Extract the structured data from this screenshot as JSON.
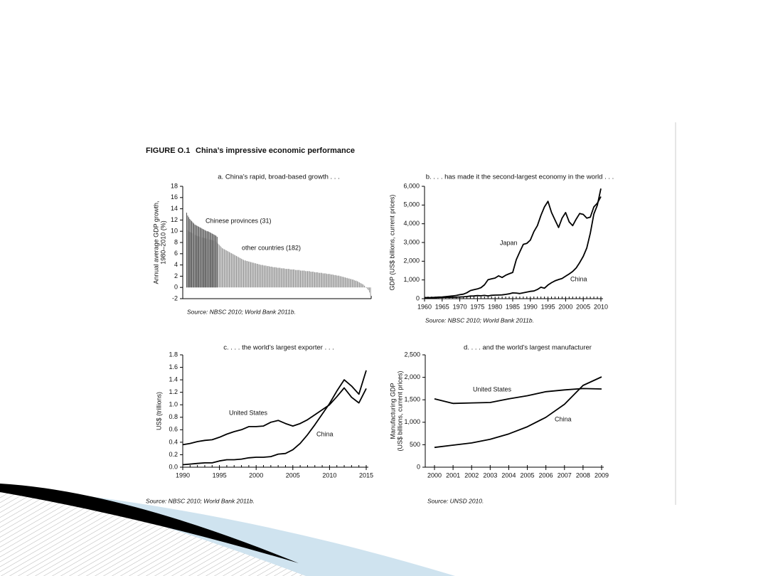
{
  "figure": {
    "label": "FIGURE O.1",
    "title": "China’s impressive economic performance"
  },
  "chart_data": [
    {
      "type": "bar",
      "title": "a. China’s rapid, broad-based growth . . .",
      "ylabel": [
        "Annual average GDP growth,",
        "1980–2010 (%)"
      ],
      "ylim": [
        -2,
        18
      ],
      "yticks": [
        -2,
        0,
        2,
        4,
        6,
        8,
        10,
        12,
        14,
        16,
        18
      ],
      "series": [
        {
          "name": "other countries (182)",
          "color": "#9a9a9a",
          "values": [
            10.5,
            10.2,
            10.0,
            9.9,
            9.8,
            9.7,
            9.6,
            9.5,
            9.4,
            9.3,
            9.2,
            9.1,
            9.1,
            9.0,
            9.0,
            8.9,
            8.9,
            8.8,
            8.8,
            8.7,
            8.7,
            8.6,
            8.6,
            8.5,
            8.5,
            8.4,
            8.4,
            8.3,
            8.3,
            8.2,
            8.0,
            7.8,
            7.6,
            7.4,
            7.2,
            7.0,
            6.9,
            6.8,
            6.7,
            6.6,
            6.5,
            6.4,
            6.3,
            6.2,
            6.1,
            6.0,
            5.9,
            5.8,
            5.7,
            5.6,
            5.5,
            5.4,
            5.3,
            5.2,
            5.1,
            5.0,
            4.9,
            4.8,
            4.8,
            4.7,
            4.7,
            4.6,
            4.6,
            4.5,
            4.5,
            4.4,
            4.4,
            4.3,
            4.3,
            4.2,
            4.2,
            4.1,
            4.1,
            4.0,
            4.0,
            4.0,
            3.9,
            3.9,
            3.9,
            3.8,
            3.8,
            3.8,
            3.7,
            3.7,
            3.7,
            3.6,
            3.6,
            3.6,
            3.6,
            3.5,
            3.5,
            3.5,
            3.5,
            3.4,
            3.4,
            3.4,
            3.4,
            3.3,
            3.3,
            3.3,
            3.3,
            3.3,
            3.2,
            3.2,
            3.2,
            3.2,
            3.2,
            3.1,
            3.1,
            3.1,
            3.1,
            3.1,
            3.0,
            3.0,
            3.0,
            3.0,
            3.0,
            2.9,
            2.9,
            2.9,
            2.9,
            2.9,
            2.8,
            2.8,
            2.8,
            2.8,
            2.7,
            2.7,
            2.7,
            2.7,
            2.6,
            2.6,
            2.6,
            2.6,
            2.5,
            2.5,
            2.5,
            2.5,
            2.4,
            2.4,
            2.4,
            2.4,
            2.3,
            2.3,
            2.3,
            2.2,
            2.2,
            2.2,
            2.1,
            2.1,
            2.1,
            2.0,
            2.0,
            1.9,
            1.9,
            1.8,
            1.8,
            1.7,
            1.7,
            1.6,
            1.6,
            1.5,
            1.5,
            1.4,
            1.4,
            1.3,
            1.2,
            1.2,
            1.1,
            1.0,
            0.9,
            0.8,
            0.7,
            0.6,
            0.5,
            0.3,
            0.1,
            -0.1,
            -0.3,
            -0.5,
            -0.9,
            -1.5
          ]
        },
        {
          "name": "Chinese provinces (31)",
          "color": "#555555",
          "values": [
            13.3,
            12.8,
            12.5,
            12.2,
            12.0,
            11.8,
            11.6,
            11.4,
            11.2,
            11.1,
            11.0,
            10.9,
            10.8,
            10.7,
            10.6,
            10.5,
            10.4,
            10.3,
            10.2,
            10.1,
            10.0,
            10.0,
            9.9,
            9.8,
            9.7,
            9.6,
            9.5,
            9.4,
            9.3,
            9.2,
            9.0
          ]
        }
      ],
      "source": "Source: NBSC 2010; World Bank 2011b."
    },
    {
      "type": "line",
      "title": "b. . . . has made it the second-largest economy in the world . . .",
      "ylabel": [
        "GDP (US$ billions, current prices)"
      ],
      "x": [
        1960,
        1961,
        1962,
        1963,
        1964,
        1965,
        1966,
        1967,
        1968,
        1969,
        1970,
        1971,
        1972,
        1973,
        1974,
        1975,
        1976,
        1977,
        1978,
        1979,
        1980,
        1981,
        1982,
        1983,
        1984,
        1985,
        1986,
        1987,
        1988,
        1989,
        1990,
        1991,
        1992,
        1993,
        1994,
        1995,
        1996,
        1997,
        1998,
        1999,
        2000,
        2001,
        2002,
        2003,
        2004,
        2005,
        2006,
        2007,
        2008,
        2009,
        2010
      ],
      "xlim": [
        1960,
        2010
      ],
      "xticks": [
        1960,
        1965,
        1970,
        1975,
        1980,
        1985,
        1990,
        1995,
        2000,
        2005,
        2010
      ],
      "ylim": [
        0,
        6000
      ],
      "yticks": [
        0,
        {
          "value": 1000,
          "label": "1,000"
        },
        {
          "value": 2000,
          "label": "2,000"
        },
        {
          "value": 3000,
          "label": "3,000"
        },
        {
          "value": 4000,
          "label": "4,000"
        },
        {
          "value": 5000,
          "label": "5,000"
        },
        {
          "value": 6000,
          "label": "6,000"
        }
      ],
      "series": [
        {
          "name": "Japan",
          "color": "#000000",
          "values": [
            44,
            54,
            61,
            70,
            82,
            91,
            106,
            124,
            147,
            172,
            213,
            241,
            317,
            433,
            477,
            522,
            587,
            740,
            1010,
            1060,
            1100,
            1220,
            1130,
            1250,
            1330,
            1400,
            2080,
            2500,
            2900,
            2950,
            3130,
            3580,
            3900,
            4450,
            4900,
            5200,
            4600,
            4200,
            3800,
            4300,
            4600,
            4100,
            3900,
            4250,
            4550,
            4500,
            4300,
            4350,
            4900,
            5100,
            5450
          ]
        },
        {
          "name": "China",
          "color": "#000000",
          "values": [
            60,
            50,
            47,
            51,
            60,
            70,
            77,
            73,
            71,
            79,
            92,
            100,
            114,
            139,
            144,
            163,
            154,
            175,
            149,
            178,
            191,
            195,
            203,
            228,
            257,
            309,
            300,
            273,
            312,
            348,
            390,
            409,
            488,
            613,
            559,
            728,
            856,
            953,
            1020,
            1080,
            1200,
            1320,
            1450,
            1640,
            1930,
            2260,
            2710,
            3490,
            4520,
            4990,
            5880
          ]
        }
      ],
      "source": "Source: NBSC 2010; World Bank 2011b."
    },
    {
      "type": "line",
      "title": "c. . . . the world’s largest exporter . . .",
      "ylabel": [
        "US$ (trillions)"
      ],
      "x": [
        1990,
        1991,
        1992,
        1993,
        1994,
        1995,
        1996,
        1997,
        1998,
        1999,
        2000,
        2001,
        2002,
        2003,
        2004,
        2005,
        2006,
        2007,
        2008,
        2009,
        2010,
        2011,
        2012,
        2013,
        2014,
        2015
      ],
      "xlim": [
        1990,
        2015
      ],
      "xticks": [
        1990,
        1995,
        2000,
        2005,
        2010,
        2015
      ],
      "ylim": [
        0,
        1.8
      ],
      "yticks": [
        {
          "value": 0,
          "label": "0.0"
        },
        0.2,
        0.4,
        0.6,
        0.8,
        {
          "value": 1,
          "label": "1.0"
        },
        1.2,
        1.4,
        1.6,
        1.8
      ],
      "series": [
        {
          "name": "United States",
          "color": "#000000",
          "values": [
            0.36,
            0.38,
            0.41,
            0.43,
            0.44,
            0.48,
            0.53,
            0.57,
            0.6,
            0.65,
            0.65,
            0.66,
            0.72,
            0.75,
            0.7,
            0.66,
            0.7,
            0.76,
            0.84,
            0.92,
            1.0,
            1.13,
            1.27,
            1.12,
            1.03,
            1.26
          ]
        },
        {
          "name": "China",
          "color": "#000000",
          "values": [
            0.04,
            0.05,
            0.06,
            0.07,
            0.07,
            0.1,
            0.12,
            0.12,
            0.13,
            0.15,
            0.16,
            0.16,
            0.17,
            0.21,
            0.22,
            0.28,
            0.38,
            0.52,
            0.68,
            0.85,
            1.02,
            1.22,
            1.4,
            1.3,
            1.17,
            1.55
          ]
        }
      ],
      "source": "Source: NBSC 2010; World Bank 2011b."
    },
    {
      "type": "line",
      "title": "d. . . . and the world’s largest manufacturer",
      "ylabel": [
        "Manufacturing GDP",
        "(US$ billions, current prices)"
      ],
      "x": [
        2000,
        2001,
        2002,
        2003,
        2004,
        2005,
        2006,
        2007,
        2008,
        2009
      ],
      "xlim": [
        2000,
        2009
      ],
      "xticks": [
        2000,
        2001,
        2002,
        2003,
        2004,
        2005,
        2006,
        2007,
        2008,
        2009
      ],
      "ylim": [
        0,
        2500
      ],
      "yticks": [
        0,
        500,
        {
          "value": 1000,
          "label": "1,000"
        },
        {
          "value": 1500,
          "label": "1,500"
        },
        {
          "value": 2000,
          "label": "2,000"
        },
        {
          "value": 2500,
          "label": "2,500"
        }
      ],
      "series": [
        {
          "name": "United States",
          "color": "#000000",
          "values": [
            1520,
            1420,
            1430,
            1440,
            1520,
            1590,
            1680,
            1720,
            1750,
            1740
          ]
        },
        {
          "name": "China",
          "color": "#000000",
          "values": [
            440,
            490,
            540,
            620,
            740,
            900,
            1110,
            1400,
            1820,
            2010
          ]
        }
      ],
      "source": "Source: UNSD 2010."
    }
  ]
}
